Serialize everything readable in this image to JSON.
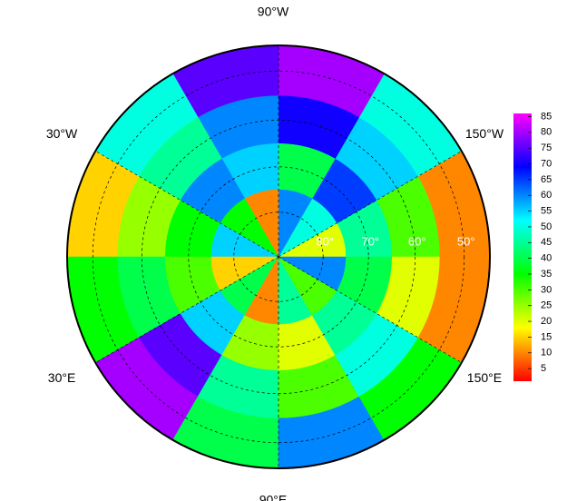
{
  "map": {
    "projection": "polar stereographic",
    "boundary_lat": 45,
    "lon_labels": [
      {
        "value": -90,
        "label": "90°W"
      },
      {
        "value": -30,
        "label": "30°W"
      },
      {
        "value": -150,
        "label": "150°W"
      },
      {
        "value": 30,
        "label": "30°E"
      },
      {
        "value": 150,
        "label": "150°E"
      },
      {
        "value": 90,
        "label": "90°E"
      }
    ],
    "lat_labels": [
      {
        "value": 80,
        "label": "80°"
      },
      {
        "value": 70,
        "label": "70°"
      },
      {
        "value": 60,
        "label": "60°"
      },
      {
        "value": 50,
        "label": "50°"
      }
    ],
    "field": {
      "lat_edges": [
        45,
        55,
        65,
        75,
        90
      ],
      "lon_edges": [
        -180,
        -150,
        -120,
        -90,
        -60,
        -30,
        0,
        30,
        60,
        90,
        120,
        150,
        180
      ],
      "values": [
        [
          10,
          50,
          80,
          75,
          50,
          15,
          35,
          80,
          40,
          60,
          35,
          10
        ],
        [
          30,
          55,
          70,
          60,
          45,
          25,
          40,
          75,
          45,
          30,
          50,
          20
        ],
        [
          45,
          65,
          40,
          55,
          60,
          35,
          30,
          55,
          25,
          20,
          45,
          40
        ],
        [
          20,
          50,
          60,
          10,
          35,
          55,
          15,
          40,
          10,
          45,
          30,
          60
        ]
      ]
    },
    "colorbar": {
      "clim": [
        1,
        86
      ],
      "ticks": [
        5,
        10,
        15,
        20,
        25,
        30,
        35,
        40,
        45,
        50,
        55,
        60,
        65,
        70,
        75,
        80,
        85
      ]
    }
  }
}
